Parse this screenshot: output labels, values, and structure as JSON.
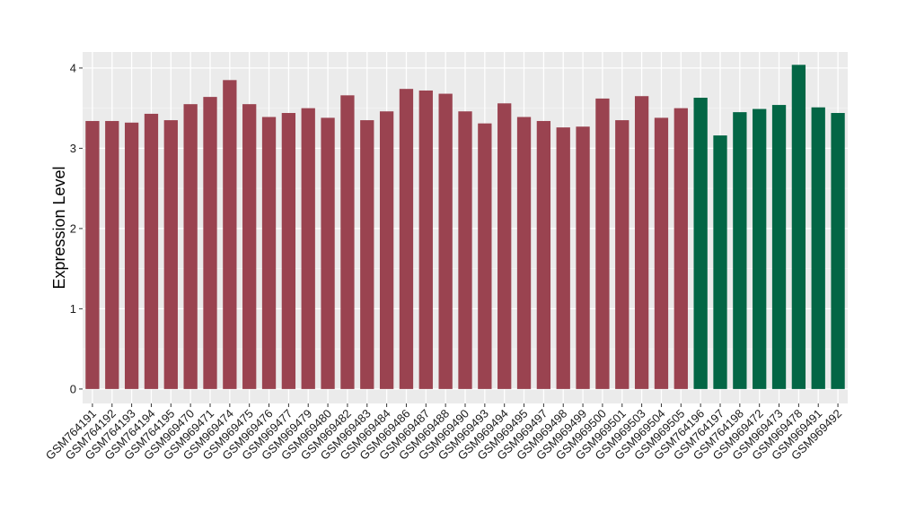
{
  "chart_data": {
    "type": "bar",
    "ylabel": "Expression Level",
    "xlabel": "",
    "title": "",
    "ylim": [
      -0.18,
      4.2
    ],
    "yticks": [
      0,
      1,
      2,
      3,
      4
    ],
    "grid": true,
    "categories": [
      "GSM764191",
      "GSM764192",
      "GSM764193",
      "GSM764194",
      "GSM764195",
      "GSM969470",
      "GSM969471",
      "GSM969474",
      "GSM969475",
      "GSM969476",
      "GSM969477",
      "GSM969479",
      "GSM969480",
      "GSM969482",
      "GSM969483",
      "GSM969484",
      "GSM969486",
      "GSM969487",
      "GSM969488",
      "GSM969490",
      "GSM969493",
      "GSM969494",
      "GSM969495",
      "GSM969497",
      "GSM969498",
      "GSM969499",
      "GSM969500",
      "GSM969501",
      "GSM969503",
      "GSM969504",
      "GSM969505",
      "GSM764196",
      "GSM764197",
      "GSM764198",
      "GSM969472",
      "GSM969473",
      "GSM969478",
      "GSM969491",
      "GSM969492"
    ],
    "values": [
      3.34,
      3.34,
      3.32,
      3.43,
      3.35,
      3.55,
      3.64,
      3.85,
      3.55,
      3.39,
      3.44,
      3.5,
      3.38,
      3.66,
      3.35,
      3.46,
      3.74,
      3.72,
      3.68,
      3.46,
      3.31,
      3.56,
      3.39,
      3.34,
      3.26,
      3.27,
      3.62,
      3.35,
      3.65,
      3.38,
      3.5,
      3.63,
      3.16,
      3.45,
      3.49,
      3.54,
      4.04,
      3.51,
      3.44
    ],
    "groups": [
      0,
      0,
      0,
      0,
      0,
      0,
      0,
      0,
      0,
      0,
      0,
      0,
      0,
      0,
      0,
      0,
      0,
      0,
      0,
      0,
      0,
      0,
      0,
      0,
      0,
      0,
      0,
      0,
      0,
      0,
      0,
      1,
      1,
      1,
      1,
      1,
      1,
      1,
      1
    ],
    "colors": [
      "#9a4350",
      "#036645"
    ]
  }
}
